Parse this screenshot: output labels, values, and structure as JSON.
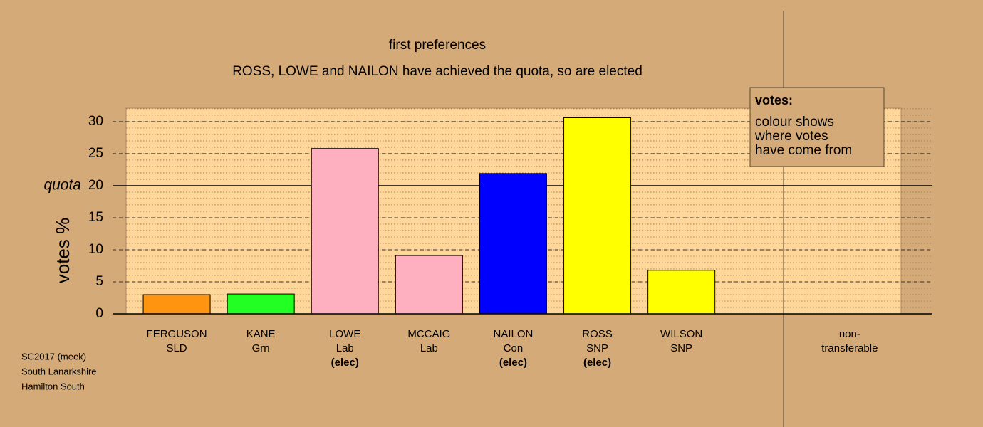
{
  "chart_data": {
    "type": "bar",
    "title": "first preferences",
    "subtitle": "ROSS, LOWE and NAILON have achieved the quota, so are elected",
    "y_label": "votes %",
    "categories": [
      "FERGUSON",
      "KANE",
      "LOWE",
      "MCCAIG",
      "NAILON",
      "ROSS",
      "WILSON",
      null,
      "non-"
    ],
    "sublabels": [
      "SLD",
      "Grn",
      "Lab",
      "Lab",
      "Con",
      "SNP",
      "SNP",
      null,
      "transferable"
    ],
    "notes": [
      null,
      null,
      "(elec)",
      null,
      "(elec)",
      "(elec)",
      null,
      null,
      null
    ],
    "values": [
      3.0,
      3.1,
      25.8,
      9.1,
      21.9,
      30.6,
      6.8,
      null,
      0
    ],
    "colors": [
      "#ff9410",
      "#22ff22",
      "#ffb0c0",
      "#ffb0c0",
      "#0000ff",
      "#ffff00",
      "#ffff00",
      null,
      "#ffd699"
    ],
    "ylim": [
      0,
      32.1
    ],
    "yticks": [
      0,
      5,
      10,
      15,
      20,
      25,
      30
    ],
    "minor_step": 1,
    "quota": 20,
    "quota_label": "quota",
    "grid": true,
    "legend": {
      "title": "votes:",
      "lines": [
        "colour shows",
        "where votes",
        "have come from"
      ]
    },
    "footer": [
      "SC2017 (meek)",
      "South Lanarkshire",
      "Hamilton South"
    ]
  }
}
